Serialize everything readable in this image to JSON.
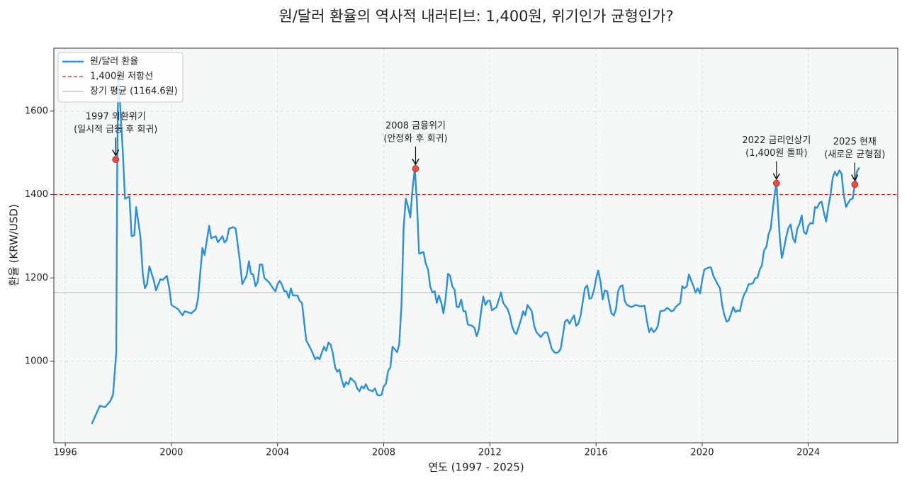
{
  "chart_data": {
    "type": "line",
    "title": "원/달러 환율의 역사적 내러티브: 1,400원, 위기인가 균형인가?",
    "xlabel": "연도 (1997 - 2025)",
    "ylabel": "환율 (KRW/USD)",
    "xlim": [
      1995.57,
      2027.37
    ],
    "ylim": [
      804.5,
      1751
    ],
    "xticks": [
      1996,
      2000,
      2004,
      2008,
      2012,
      2016,
      2020,
      2024
    ],
    "yticks": [
      1000,
      1200,
      1400,
      1600
    ],
    "grid": true,
    "legend": "upper left",
    "x": [
      1997.0,
      1997.3,
      1997.5,
      1997.7,
      1997.8,
      1997.92,
      1997.96,
      1998.0,
      1998.08,
      1998.17,
      1998.25,
      1998.42,
      1998.5,
      1998.6,
      1998.67,
      1998.83,
      1998.92,
      1999.0,
      1999.08,
      1999.17,
      1999.33,
      1999.42,
      1999.58,
      1999.67,
      1999.83,
      1999.92,
      2000.0,
      2000.25,
      2000.42,
      2000.5,
      2000.75,
      2000.92,
      2001.0,
      2001.17,
      2001.25,
      2001.42,
      2001.5,
      2001.67,
      2001.75,
      2001.92,
      2002.0,
      2002.08,
      2002.17,
      2002.33,
      2002.42,
      2002.58,
      2002.67,
      2002.83,
      2002.92,
      2003.0,
      2003.08,
      2003.17,
      2003.25,
      2003.33,
      2003.42,
      2003.5,
      2003.67,
      2003.83,
      2003.92,
      2004.0,
      2004.08,
      2004.17,
      2004.25,
      2004.33,
      2004.42,
      2004.5,
      2004.58,
      2004.75,
      2004.83,
      2004.92,
      2005.08,
      2005.25,
      2005.42,
      2005.5,
      2005.58,
      2005.75,
      2005.83,
      2005.92,
      2006.0,
      2006.08,
      2006.17,
      2006.25,
      2006.33,
      2006.42,
      2006.5,
      2006.58,
      2006.67,
      2006.75,
      2006.83,
      2006.92,
      2007.0,
      2007.08,
      2007.17,
      2007.25,
      2007.33,
      2007.42,
      2007.58,
      2007.67,
      2007.75,
      2007.83,
      2007.92,
      2008.0,
      2008.08,
      2008.17,
      2008.25,
      2008.33,
      2008.5,
      2008.58,
      2008.67,
      2008.75,
      2008.83,
      2008.92,
      2009.0,
      2009.08,
      2009.17,
      2009.25,
      2009.33,
      2009.5,
      2009.58,
      2009.67,
      2009.75,
      2009.83,
      2009.92,
      2010.0,
      2010.08,
      2010.17,
      2010.25,
      2010.33,
      2010.42,
      2010.5,
      2010.58,
      2010.67,
      2010.75,
      2010.83,
      2010.92,
      2011.0,
      2011.08,
      2011.17,
      2011.33,
      2011.42,
      2011.5,
      2011.58,
      2011.67,
      2011.75,
      2011.83,
      2011.92,
      2012.0,
      2012.08,
      2012.25,
      2012.42,
      2012.5,
      2012.67,
      2012.75,
      2012.83,
      2012.92,
      2013.0,
      2013.17,
      2013.25,
      2013.33,
      2013.42,
      2013.58,
      2013.67,
      2013.75,
      2013.92,
      2014.0,
      2014.08,
      2014.17,
      2014.33,
      2014.42,
      2014.5,
      2014.58,
      2014.67,
      2014.83,
      2014.92,
      2015.0,
      2015.08,
      2015.17,
      2015.25,
      2015.33,
      2015.42,
      2015.58,
      2015.67,
      2015.75,
      2015.83,
      2015.92,
      2016.0,
      2016.08,
      2016.17,
      2016.25,
      2016.33,
      2016.42,
      2016.5,
      2016.58,
      2016.67,
      2016.75,
      2016.83,
      2016.92,
      2017.0,
      2017.08,
      2017.17,
      2017.33,
      2017.5,
      2017.67,
      2017.83,
      2017.92,
      2018.0,
      2018.08,
      2018.17,
      2018.25,
      2018.33,
      2018.42,
      2018.58,
      2018.67,
      2018.75,
      2018.83,
      2018.92,
      2019.0,
      2019.17,
      2019.25,
      2019.33,
      2019.42,
      2019.5,
      2019.58,
      2019.67,
      2019.75,
      2019.83,
      2019.92,
      2020.0,
      2020.08,
      2020.25,
      2020.33,
      2020.42,
      2020.58,
      2020.67,
      2020.75,
      2020.83,
      2020.92,
      2021.0,
      2021.17,
      2021.25,
      2021.33,
      2021.42,
      2021.5,
      2021.58,
      2021.67,
      2021.75,
      2021.83,
      2021.92,
      2022.0,
      2022.08,
      2022.17,
      2022.25,
      2022.33,
      2022.42,
      2022.5,
      2022.58,
      2022.67,
      2022.75,
      2022.8,
      2022.92,
      2023.0,
      2023.08,
      2023.17,
      2023.25,
      2023.33,
      2023.42,
      2023.5,
      2023.58,
      2023.67,
      2023.75,
      2023.83,
      2023.92,
      2024.0,
      2024.08,
      2024.17,
      2024.25,
      2024.33,
      2024.42,
      2024.5,
      2024.58,
      2024.67,
      2024.75,
      2024.83,
      2024.92,
      2025.0,
      2025.08,
      2025.17,
      2025.25,
      2025.33,
      2025.42,
      2025.5,
      2025.58,
      2025.67,
      2025.75,
      2025.83,
      2025.92
    ],
    "series": [
      {
        "name": "원/달러 환율",
        "color": "#2b90d9",
        "values": [
          850,
          893,
          890,
          905,
          920,
          1020,
          1484,
          1700,
          1600,
          1500,
          1390,
          1395,
          1300,
          1302,
          1370,
          1300,
          1210,
          1175,
          1185,
          1228,
          1195,
          1170,
          1197,
          1195,
          1205,
          1175,
          1135,
          1125,
          1110,
          1120,
          1115,
          1125,
          1150,
          1272,
          1255,
          1325,
          1295,
          1300,
          1285,
          1300,
          1285,
          1290,
          1318,
          1322,
          1318,
          1240,
          1185,
          1205,
          1240,
          1210,
          1208,
          1180,
          1190,
          1232,
          1232,
          1200,
          1190,
          1175,
          1168,
          1185,
          1193,
          1183,
          1168,
          1168,
          1152,
          1175,
          1158,
          1158,
          1145,
          1140,
          1050,
          1030,
          1005,
          1010,
          1005,
          1035,
          1025,
          1045,
          1040,
          1020,
          985,
          975,
          980,
          955,
          938,
          950,
          945,
          960,
          955,
          950,
          935,
          928,
          940,
          935,
          945,
          932,
          928,
          935,
          920,
          918,
          920,
          940,
          945,
          978,
          985,
          1035,
          1022,
          1040,
          1135,
          1320,
          1390,
          1370,
          1345,
          1410,
          1462,
          1380,
          1258,
          1262,
          1235,
          1220,
          1180,
          1165,
          1168,
          1140,
          1158,
          1140,
          1115,
          1150,
          1210,
          1205,
          1180,
          1172,
          1130,
          1130,
          1148,
          1120,
          1120,
          1088,
          1085,
          1080,
          1060,
          1075,
          1120,
          1155,
          1135,
          1145,
          1145,
          1122,
          1130,
          1165,
          1140,
          1125,
          1110,
          1085,
          1070,
          1065,
          1100,
          1120,
          1110,
          1135,
          1120,
          1085,
          1070,
          1058,
          1065,
          1070,
          1068,
          1030,
          1022,
          1020,
          1022,
          1030,
          1095,
          1100,
          1090,
          1100,
          1110,
          1085,
          1090,
          1110,
          1175,
          1182,
          1150,
          1152,
          1170,
          1198,
          1218,
          1190,
          1148,
          1170,
          1168,
          1140,
          1115,
          1110,
          1125,
          1168,
          1180,
          1182,
          1145,
          1135,
          1130,
          1135,
          1132,
          1133,
          1095,
          1070,
          1080,
          1070,
          1075,
          1085,
          1120,
          1122,
          1128,
          1125,
          1120,
          1122,
          1130,
          1140,
          1180,
          1175,
          1180,
          1208,
          1195,
          1180,
          1165,
          1175,
          1163,
          1195,
          1220,
          1225,
          1225,
          1205,
          1185,
          1175,
          1135,
          1112,
          1095,
          1098,
          1130,
          1118,
          1122,
          1120,
          1145,
          1160,
          1170,
          1185,
          1185,
          1188,
          1200,
          1200,
          1220,
          1230,
          1265,
          1275,
          1305,
          1318,
          1370,
          1410,
          1427,
          1300,
          1248,
          1270,
          1300,
          1320,
          1328,
          1295,
          1285,
          1318,
          1330,
          1350,
          1310,
          1305,
          1325,
          1332,
          1330,
          1370,
          1368,
          1380,
          1383,
          1358,
          1335,
          1370,
          1398,
          1440,
          1455,
          1445,
          1458,
          1450,
          1400,
          1370,
          1380,
          1388,
          1390,
          1424,
          1455,
          1465
        ]
      }
    ],
    "reference_lines": [
      {
        "name": "1,400원 저항선",
        "value": 1400,
        "color": "#d62728",
        "style": "dashed"
      },
      {
        "name": "장기 평균 (1164.6원)",
        "value": 1164.6,
        "color": "#bbbbbb",
        "style": "solid"
      }
    ],
    "annotations": [
      {
        "lines": [
          "1997 외환위기",
          "(일시적 급등 후 회귀)"
        ],
        "x": 1997.9,
        "y": 1484
      },
      {
        "lines": [
          "2008 금융위기",
          "(안정화 후 회귀)"
        ],
        "x": 2009.2,
        "y": 1462
      },
      {
        "lines": [
          "2022 금리인상기",
          "(1,400원 돌파)"
        ],
        "x": 2022.8,
        "y": 1427
      },
      {
        "lines": [
          "2025 현재",
          "(새로운 균형점)"
        ],
        "x": 2025.75,
        "y": 1424
      }
    ],
    "marker_color": "#e74c3c"
  }
}
